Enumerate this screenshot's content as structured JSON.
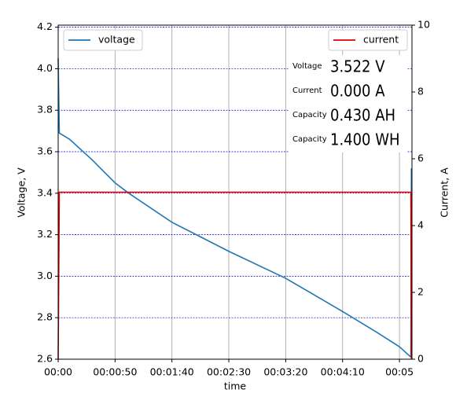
{
  "chart_data": {
    "type": "line",
    "xlabel": "time",
    "ylabel": "Voltage, V",
    "y2label": "Current, A",
    "xlim": [
      0,
      311
    ],
    "xticks": [
      {
        "value": 0,
        "label": "00:00"
      },
      {
        "value": 50,
        "label": "00:00:50"
      },
      {
        "value": 100,
        "label": "00:01:40"
      },
      {
        "value": 150,
        "label": "00:02:30"
      },
      {
        "value": 200,
        "label": "00:03:20"
      },
      {
        "value": 250,
        "label": "00:04:10"
      },
      {
        "value": 300,
        "label": "00:05"
      }
    ],
    "ylim": [
      2.6,
      4.21
    ],
    "yticks": [
      {
        "value": 2.6,
        "label": "2.6"
      },
      {
        "value": 2.8,
        "label": "2.8"
      },
      {
        "value": 3.0,
        "label": "3.0"
      },
      {
        "value": 3.2,
        "label": "3.2"
      },
      {
        "value": 3.4,
        "label": "3.4"
      },
      {
        "value": 3.6,
        "label": "3.6"
      },
      {
        "value": 3.8,
        "label": "3.8"
      },
      {
        "value": 4.0,
        "label": "4.0"
      },
      {
        "value": 4.2,
        "label": "4.2"
      }
    ],
    "y2lim": [
      0,
      10
    ],
    "y2ticks": [
      0,
      2,
      4,
      6,
      8,
      10
    ],
    "grid": true,
    "series": [
      {
        "name": "voltage",
        "color": "#1f77b4",
        "legend": "upper left",
        "x": [
          0,
          1,
          10,
          30,
          50,
          62,
          100,
          150,
          200,
          250,
          280,
          300,
          310,
          310.5
        ],
        "values": [
          4.05,
          3.69,
          3.66,
          3.56,
          3.45,
          3.4,
          3.26,
          3.12,
          2.99,
          2.83,
          2.73,
          2.66,
          2.61,
          3.52
        ]
      },
      {
        "name": "current",
        "color": "#e00000",
        "axis": "y2",
        "legend": "upper right",
        "x": [
          0,
          1,
          310,
          310.5
        ],
        "values": [
          0,
          5,
          5,
          0
        ]
      }
    ],
    "annotations": [
      {
        "label": "Voltage",
        "value": "3.522 V",
        "color": "#006400"
      },
      {
        "label": "Current",
        "value": "0.000 A",
        "color": "#c00000"
      },
      {
        "label": "Capacity",
        "value": "0.430 AH",
        "color": "#000000"
      },
      {
        "label": "Capacity",
        "value": "1.400 WH",
        "color": "#000000"
      }
    ]
  }
}
